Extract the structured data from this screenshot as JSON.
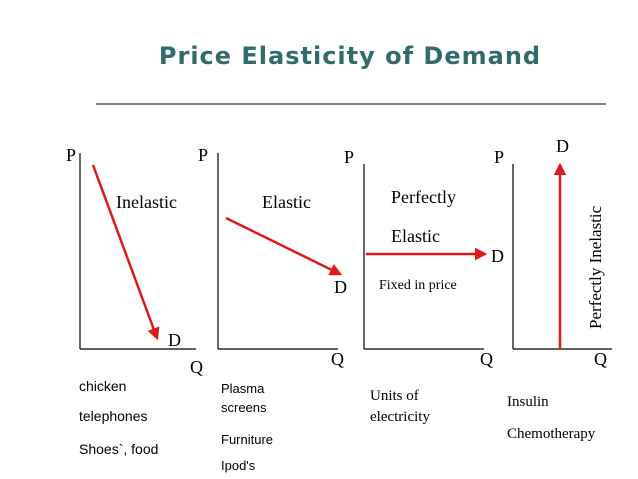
{
  "title": "Price Elasticity of Demand",
  "curve_color": "#e01818",
  "title_color": "#336b6b",
  "panels": [
    {
      "id": "inelastic",
      "p_label": "P",
      "q_label": "Q",
      "d_label": "D",
      "type_label": "Inelastic",
      "examples": [
        "chicken",
        "telephones",
        "Shoes`, food"
      ]
    },
    {
      "id": "elastic",
      "p_label": "P",
      "q_label": "Q",
      "d_label": "D",
      "type_label": "Elastic",
      "examples": [
        "Plasma",
        "screens",
        "Furniture",
        "Ipod's"
      ]
    },
    {
      "id": "perfectly-elastic",
      "p_label": "P",
      "q_label": "Q",
      "d_label": "D",
      "type_label_line1": "Perfectly",
      "type_label_line2": "Elastic",
      "note": "Fixed in price",
      "examples": [
        "Units of",
        "electricity"
      ]
    },
    {
      "id": "perfectly-inelastic",
      "p_label": "P",
      "q_label": "Q",
      "d_label": "D",
      "type_label": "Perfectly Inelastic",
      "examples": [
        "Insulin",
        "Chemotherapy"
      ]
    }
  ]
}
